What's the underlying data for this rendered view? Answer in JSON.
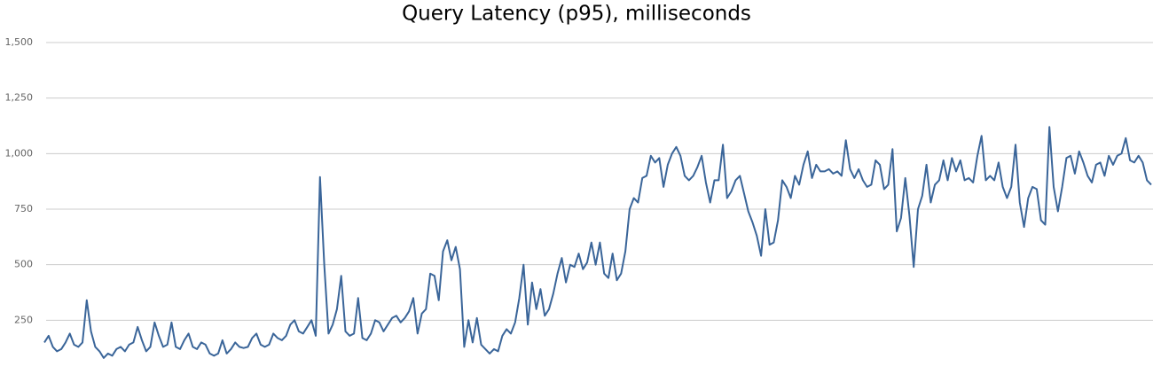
{
  "chart_data": {
    "type": "line",
    "title": "Query Latency (p95), milliseconds",
    "color": "#3a6599",
    "grid": true,
    "ylim": [
      0,
      1500
    ],
    "yticks": [
      250,
      500,
      750,
      {
        "value": 1000,
        "label": "1,000"
      },
      {
        "value": 1250,
        "label": "1,250"
      },
      {
        "value": 1500,
        "label": "1,500"
      }
    ],
    "values": [
      150,
      180,
      130,
      110,
      120,
      150,
      190,
      140,
      130,
      150,
      340,
      200,
      130,
      110,
      80,
      100,
      90,
      120,
      130,
      110,
      140,
      150,
      220,
      160,
      110,
      130,
      240,
      180,
      130,
      140,
      240,
      130,
      120,
      160,
      190,
      130,
      120,
      150,
      140,
      100,
      90,
      100,
      160,
      100,
      120,
      150,
      130,
      125,
      130,
      170,
      190,
      140,
      130,
      140,
      190,
      170,
      160,
      180,
      230,
      250,
      200,
      190,
      220,
      250,
      180,
      895,
      500,
      190,
      230,
      300,
      450,
      200,
      180,
      190,
      350,
      170,
      160,
      190,
      250,
      240,
      200,
      230,
      260,
      270,
      240,
      260,
      290,
      350,
      190,
      280,
      300,
      460,
      450,
      340,
      560,
      610,
      520,
      580,
      480,
      130,
      250,
      150,
      260,
      140,
      120,
      100,
      120,
      110,
      180,
      210,
      190,
      240,
      350,
      500,
      230,
      420,
      300,
      390,
      270,
      300,
      370,
      460,
      530,
      420,
      500,
      490,
      550,
      480,
      510,
      600,
      500,
      600,
      460,
      440,
      550,
      430,
      460,
      560,
      750,
      800,
      780,
      890,
      900,
      990,
      960,
      980,
      850,
      950,
      1000,
      1030,
      990,
      900,
      880,
      900,
      940,
      990,
      870,
      780,
      880,
      880,
      1040,
      800,
      830,
      880,
      900,
      820,
      740,
      690,
      630,
      540,
      750,
      590,
      600,
      700,
      880,
      850,
      800,
      900,
      860,
      950,
      1010,
      890,
      950,
      920,
      920,
      930,
      910,
      920,
      900,
      1060,
      930,
      890,
      930,
      880,
      850,
      860,
      970,
      950,
      840,
      860,
      1020,
      650,
      710,
      890,
      720,
      490,
      750,
      810,
      950,
      780,
      860,
      880,
      970,
      880,
      980,
      920,
      970,
      880,
      890,
      870,
      990,
      1080,
      880,
      900,
      880,
      960,
      850,
      800,
      850,
      1040,
      780,
      670,
      800,
      850,
      840,
      700,
      680,
      1120,
      850,
      740,
      850,
      980,
      990,
      910,
      1010,
      960,
      900,
      870,
      950,
      960,
      900,
      990,
      950,
      990,
      1000,
      1070,
      970,
      960,
      990,
      960,
      880,
      860
    ]
  }
}
